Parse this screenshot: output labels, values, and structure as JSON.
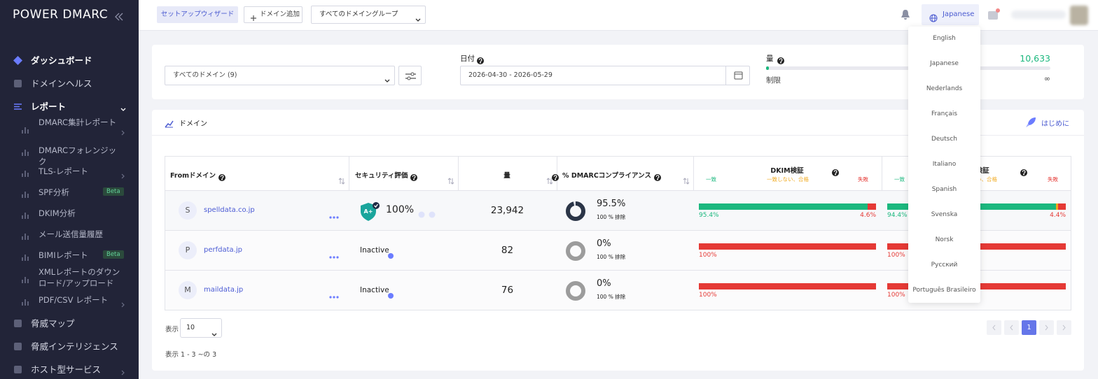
{
  "sidebar": {
    "logo": "POWER DMARC",
    "main_top": [
      "ダッシュボード",
      "ドメインヘルス",
      "レポート"
    ],
    "report_items": [
      {
        "label": "DMARC集計レポート"
      },
      {
        "label": "DMARCフォレンジック"
      },
      {
        "label": "TLS-レポート"
      },
      {
        "label": "SPF分析",
        "badge": "Beta"
      },
      {
        "label": "DKIM分析"
      },
      {
        "label": "メール送信量履歴"
      },
      {
        "label": "BIMIレポート",
        "badge": "Beta"
      },
      {
        "label": "XMLレポートのダウンロード/アップロード"
      },
      {
        "label": "PDF/CSV レポート"
      }
    ],
    "main_bottom": [
      "脅威マップ",
      "脅威インテリジェンス",
      "ホスト型サービス"
    ]
  },
  "topbar": {
    "setup": "セットアップウィザード",
    "add_domain": "ドメイン追加",
    "group": "すべてのドメイングループ",
    "language": "Japanese"
  },
  "filters": {
    "domains": "すべてのドメイン (9)",
    "date_label": "日付",
    "date_range": "2026-04-30 - 2026-05-29",
    "volume_label": "量",
    "volume": "10,633",
    "limit_label": "制限",
    "limit": "∞"
  },
  "panel": {
    "title": "ドメイン",
    "start": "はじめに"
  },
  "table": {
    "headers": [
      "Fromドメイン",
      "セキュリティ評価",
      "量",
      "% DMARCコンプライアンス",
      "DKIM検証",
      "SPF検証"
    ],
    "legend": [
      "一致",
      "一致しない、合格",
      "失敗"
    ],
    "rows": [
      {
        "initial": "S",
        "domain": "spelldata.co.jp",
        "security": "100%",
        "volume": "23,942",
        "compliance": 95.5,
        "compliance_label": "95.5%",
        "policy": "100 % 排除",
        "dkim": {
          "pass": 95.4,
          "fail": 4.6,
          "pass_label": "95.4%",
          "fail_label": "4.6%"
        },
        "spf": {
          "pass": 94.4,
          "unaligned": 1.2,
          "fail": 4.4,
          "pass_label": "94.4%",
          "fail_label": "4.4%"
        }
      },
      {
        "initial": "P",
        "domain": "perfdata.jp",
        "security": "Inactive",
        "volume": "82",
        "compliance": 0,
        "compliance_label": "0%",
        "policy": "100 % 排除",
        "dkim": {
          "fail": 100,
          "fail_label": "100%"
        },
        "spf": {
          "fail": 100,
          "fail_label": "100%"
        }
      },
      {
        "initial": "M",
        "domain": "maildata.jp",
        "security": "Inactive",
        "volume": "76",
        "compliance": 0,
        "compliance_label": "0%",
        "policy": "100 % 排除",
        "dkim": {
          "fail": 100,
          "fail_label": "100%"
        },
        "spf": {
          "fail": 100,
          "fail_label": "100%"
        }
      }
    ]
  },
  "footer": {
    "show": "表示",
    "page_size": "10",
    "summary": "表示 1 - 3 ~の 3",
    "page": "1"
  },
  "language_menu": [
    "English",
    "Japanese",
    "Nederlands",
    "Français",
    "Deutsch",
    "Italiano",
    "Spanish",
    "Svenska",
    "Norsk",
    "Русский",
    "Português Brasileiro"
  ]
}
